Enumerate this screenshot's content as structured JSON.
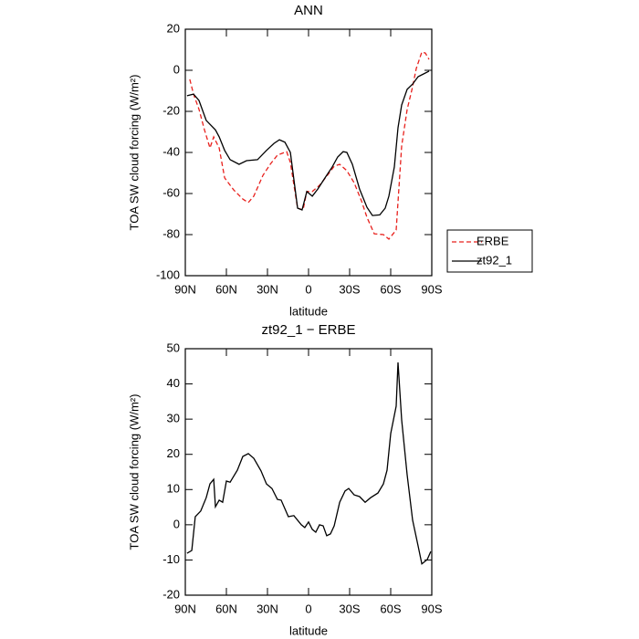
{
  "chart_data": [
    {
      "type": "line",
      "title": "ANN",
      "x_label": "latitude",
      "y_label": "TOA SW cloud forcing (W/m²)",
      "xlim": [
        90,
        -90
      ],
      "xticks": [
        {
          "value": 90,
          "label": "90N"
        },
        {
          "value": 60,
          "label": "60N"
        },
        {
          "value": 30,
          "label": "30N"
        },
        0,
        {
          "value": -30,
          "label": "30S"
        },
        {
          "value": -60,
          "label": "60S"
        },
        {
          "value": -90,
          "label": "90S"
        }
      ],
      "ylim": [
        -100,
        20
      ],
      "yticks": [
        -100,
        -80,
        -60,
        -40,
        -20,
        0,
        20
      ],
      "legend": "outside-right",
      "series": [
        {
          "name": "ERBE",
          "color": "#e8201c",
          "dashed": true,
          "x": [
            86.7,
            84,
            80,
            76,
            72,
            69.3,
            65.3,
            61.3,
            54.7,
            48,
            44,
            40,
            33.3,
            28,
            22.7,
            16,
            13.3,
            8,
            4,
            1.3,
            -2.7,
            -8,
            -13.3,
            -18.7,
            -22.7,
            -28,
            -33.3,
            -38.7,
            -42.7,
            -48,
            -54.7,
            -58.7,
            -64,
            -68,
            -72,
            -76,
            -78.7,
            -82.7,
            -85.3,
            -88
          ],
          "values": [
            -4.4,
            -11.6,
            -19,
            -29,
            -37.8,
            -32.4,
            -37.8,
            -52.4,
            -58.2,
            -62.7,
            -64.4,
            -61.3,
            -51.1,
            -45.8,
            -41.3,
            -39.6,
            -44.9,
            -67.1,
            -68,
            -59,
            -59,
            -56,
            -51.6,
            -46.7,
            -45.8,
            -48.9,
            -54.7,
            -63.6,
            -71.6,
            -79.6,
            -80,
            -82.2,
            -77.8,
            -36.9,
            -19.1,
            -8,
            0.9,
            8.9,
            8.4,
            5.3
          ]
        },
        {
          "name": "zt92_1",
          "color": "#000000",
          "dashed": false,
          "x": [
            88.7,
            84,
            80,
            74.7,
            68,
            65.3,
            61.3,
            57.3,
            50.7,
            45.3,
            37.3,
            30.7,
            25.3,
            21.3,
            17.3,
            13.3,
            8,
            4.7,
            1.3,
            -2.7,
            -6.7,
            -12,
            -17.3,
            -21.3,
            -25.3,
            -28,
            -32,
            -37.3,
            -42.7,
            -46.7,
            -52,
            -56,
            -58.7,
            -62.7,
            -65.3,
            -68,
            -72,
            -76,
            -80,
            -84,
            -88
          ],
          "values": [
            -12.4,
            -11.6,
            -14.7,
            -24.4,
            -29,
            -32.4,
            -39,
            -43.5,
            -45.8,
            -44,
            -43.5,
            -39,
            -35.6,
            -33.8,
            -35,
            -40,
            -67.1,
            -68,
            -59,
            -61.3,
            -57.8,
            -52.4,
            -47,
            -42.2,
            -39.6,
            -40,
            -45.8,
            -57.8,
            -66.7,
            -70.7,
            -70.4,
            -67.1,
            -61.3,
            -47,
            -28,
            -16.9,
            -9.3,
            -6.7,
            -3.1,
            -1.8,
            -0.4
          ]
        }
      ]
    },
    {
      "type": "line",
      "title": "zt92_1 − ERBE",
      "x_label": "latitude",
      "y_label": "TOA SW cloud forcing (W/m²)",
      "xlim": [
        90,
        -90
      ],
      "xticks": [
        {
          "value": 90,
          "label": "90N"
        },
        {
          "value": 60,
          "label": "60N"
        },
        {
          "value": 30,
          "label": "30N"
        },
        0,
        {
          "value": -30,
          "label": "30S"
        },
        {
          "value": -60,
          "label": "60S"
        },
        {
          "value": -90,
          "label": "90S"
        }
      ],
      "ylim": [
        -20,
        50
      ],
      "yticks": [
        -20,
        -10,
        0,
        10,
        20,
        30,
        40,
        50
      ],
      "color": "#000000",
      "x": [
        88.7,
        85.3,
        82.7,
        78.7,
        74.7,
        72,
        69.3,
        68,
        65.3,
        62.7,
        60,
        57.3,
        52,
        48,
        44,
        40,
        34.7,
        30.7,
        26.7,
        22.7,
        20,
        14.7,
        10.7,
        5.3,
        2.7,
        0,
        -2.7,
        -5.3,
        -8,
        -10.7,
        -13.3,
        -16,
        -18.7,
        -22.7,
        -26.7,
        -29.3,
        -33.3,
        -37.3,
        -41.3,
        -45.3,
        -50.7,
        -54.7,
        -57.3,
        -60,
        -64,
        -65.3,
        -68,
        -72,
        -76,
        -80,
        -82.7,
        -86.7,
        -89.3
      ],
      "values": [
        -8.1,
        -7.3,
        2.3,
        3.9,
        7.7,
        11.6,
        12.9,
        5.1,
        7,
        6.4,
        12.4,
        12.1,
        15.5,
        19.4,
        20.2,
        18.9,
        15.3,
        11.6,
        10.3,
        7.2,
        7,
        2.3,
        2.6,
        0,
        -0.8,
        0.8,
        -1.3,
        -2.1,
        0,
        -0.3,
        -3.1,
        -2.6,
        -0.3,
        6.4,
        9.6,
        10.3,
        8.5,
        8,
        6.4,
        7.7,
        9,
        11.6,
        15.5,
        25.9,
        33.7,
        46.1,
        29.8,
        14.2,
        1.3,
        -6,
        -11.1,
        -9.9,
        -7.6
      ]
    }
  ]
}
